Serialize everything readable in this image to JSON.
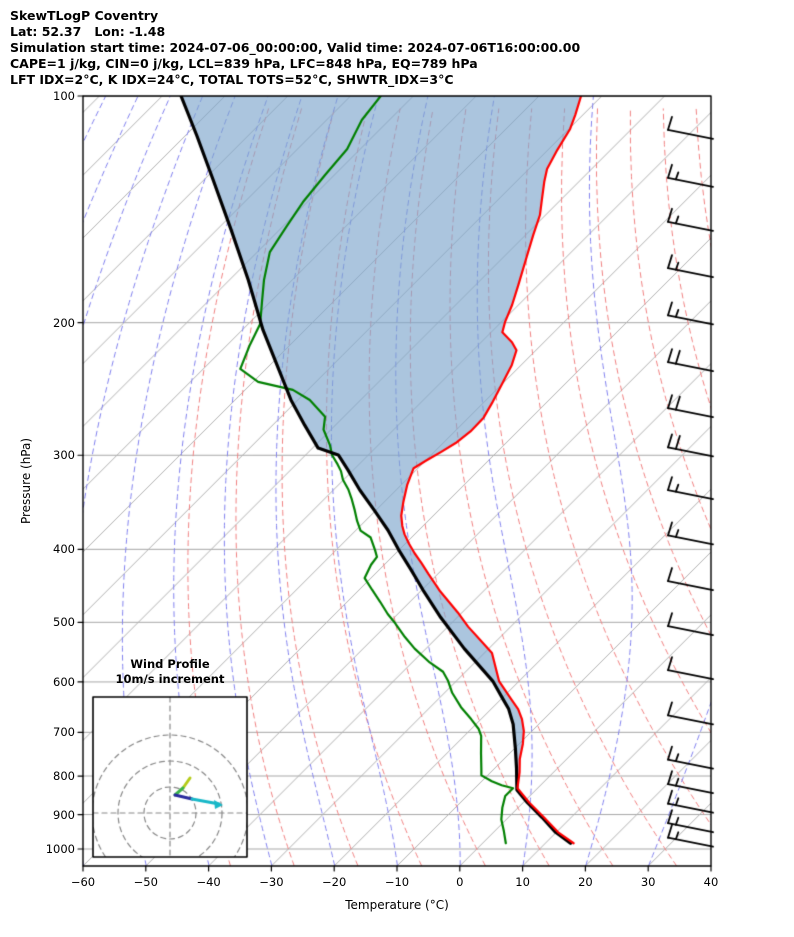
{
  "header": {
    "line1": "SkewTLogP Coventry",
    "line2": "Lat: 52.37   Lon: -1.48",
    "line3": "Simulation start time: 2024-07-06_00:00:00, Valid time: 2024-07-06T16:00:00.00",
    "line4": "CAPE=1 j/kg, CIN=0 j/kg, LCL=839 hPa, LFC=848 hPa, EQ=789 hPa",
    "line5": "LFT IDX=2°C, K IDX=24°C, TOTAL TOTS=52°C, SHWTR_IDX=3°C"
  },
  "inset": {
    "title1": "Wind Profile",
    "title2": "10m/s increment"
  },
  "chart_data": {
    "type": "skewt_logp",
    "title": "SkewTLogP Coventry",
    "location": {
      "lat": 52.37,
      "lon": -1.48
    },
    "simulation_start_time": "2024-07-06_00:00:00",
    "valid_time": "2024-07-06T16:00:00.00",
    "indices": {
      "CAPE_j_kg": 1,
      "CIN_j_kg": 0,
      "LCL_hPa": 839,
      "LFC_hPa": 848,
      "EQ_hPa": 789,
      "LFT_IDX_C": 2,
      "K_IDX_C": 24,
      "TOTAL_TOTS_C": 52,
      "SHWTR_IDX_C": 3
    },
    "xlabel": "Temperature (°C)",
    "ylabel": "Pressure (hPa)",
    "x_axis": {
      "min": -60,
      "max": 40,
      "tick_step": 10,
      "tick_labels": [
        "−60",
        "−50",
        "−40",
        "−30",
        "−20",
        "−10",
        "0",
        "10",
        "20",
        "30",
        "40"
      ]
    },
    "y_axis": {
      "scale": "log",
      "top_hPa": 100,
      "bottom_hPa": 1052,
      "ticks": [
        100,
        200,
        300,
        400,
        500,
        600,
        700,
        800,
        900,
        1000
      ]
    },
    "skew_deg_note": "isotherms skewed 45 deg up-right",
    "temperature_profile_pT": [
      [
        100,
        -103.3
      ],
      [
        106,
        -101.2
      ],
      [
        110.6,
        -99.8
      ],
      [
        117.9,
        -98.5
      ],
      [
        125,
        -97.1
      ],
      [
        130,
        -95.5
      ],
      [
        137.4,
        -93.0
      ],
      [
        143.9,
        -90.9
      ],
      [
        152.9,
        -88.8
      ],
      [
        165.1,
        -86.0
      ],
      [
        178.2,
        -83.2
      ],
      [
        189.5,
        -81.0
      ],
      [
        199.7,
        -79.4
      ],
      [
        206,
        -78.2
      ],
      [
        212.3,
        -75.1
      ],
      [
        217.6,
        -73.1
      ],
      [
        227.6,
        -71.5
      ],
      [
        239.7,
        -70.2
      ],
      [
        255.6,
        -68.6
      ],
      [
        267.4,
        -67.6
      ],
      [
        278.9,
        -67.5
      ],
      [
        289.0,
        -68.0
      ],
      [
        296.9,
        -68.9
      ],
      [
        304.9,
        -69.9
      ],
      [
        312.1,
        -70.7
      ],
      [
        328.1,
        -69.1
      ],
      [
        345.7,
        -67.0
      ],
      [
        360.9,
        -65.1
      ],
      [
        372.4,
        -63.3
      ],
      [
        382.1,
        -61.6
      ],
      [
        393.2,
        -59.4
      ],
      [
        404.8,
        -57.0
      ],
      [
        416.8,
        -54.4
      ],
      [
        431.7,
        -51.4
      ],
      [
        455.1,
        -46.8
      ],
      [
        485.1,
        -40.7
      ],
      [
        506.6,
        -36.8
      ],
      [
        525.9,
        -33.1
      ],
      [
        549.1,
        -28.8
      ],
      [
        598.4,
        -23.2
      ],
      [
        632.3,
        -18.4
      ],
      [
        651.9,
        -15.7
      ],
      [
        672.1,
        -13.5
      ],
      [
        697.1,
        -11.3
      ],
      [
        725.2,
        -9.4
      ],
      [
        759.2,
        -7.5
      ],
      [
        791.0,
        -5.4
      ],
      [
        830.5,
        -3.2
      ],
      [
        868.1,
        1.0
      ],
      [
        908.3,
        5.7
      ],
      [
        950.3,
        10.3
      ],
      [
        982.5,
        14.5
      ]
    ],
    "dewpoint_profile_pT": [
      [
        100,
        -135.2
      ],
      [
        107.6,
        -134.4
      ],
      [
        117.6,
        -132.1
      ],
      [
        127.3,
        -131.5
      ],
      [
        138.3,
        -130.7
      ],
      [
        149.3,
        -129.4
      ],
      [
        161.2,
        -128.0
      ],
      [
        175.5,
        -124.5
      ],
      [
        186.6,
        -121.6
      ],
      [
        200.8,
        -118.1
      ],
      [
        214.1,
        -116.4
      ],
      [
        230.4,
        -114.1
      ],
      [
        239.7,
        -109.2
      ],
      [
        245.6,
        -102.4
      ],
      [
        253.3,
        -98.1
      ],
      [
        266.6,
        -93.0
      ],
      [
        277.3,
        -91.2
      ],
      [
        290.8,
        -87.7
      ],
      [
        299.7,
        -85.8
      ],
      [
        308.5,
        -83.4
      ],
      [
        314.9,
        -81.8
      ],
      [
        323.4,
        -80.1
      ],
      [
        333.1,
        -77.7
      ],
      [
        342.2,
        -75.8
      ],
      [
        354.8,
        -73.4
      ],
      [
        366.7,
        -71.3
      ],
      [
        377.8,
        -69.2
      ],
      [
        385.8,
        -66.5
      ],
      [
        400.9,
        -63.8
      ],
      [
        409.4,
        -62.4
      ],
      [
        419.3,
        -62.1
      ],
      [
        436.7,
        -61.0
      ],
      [
        452.9,
        -57.9
      ],
      [
        469.9,
        -54.7
      ],
      [
        487.5,
        -51.6
      ],
      [
        501.1,
        -49.0
      ],
      [
        523.0,
        -45.2
      ],
      [
        541.9,
        -41.8
      ],
      [
        565.3,
        -37.2
      ],
      [
        581.6,
        -33.6
      ],
      [
        598.4,
        -31.3
      ],
      [
        620.2,
        -28.8
      ],
      [
        648.1,
        -25.1
      ],
      [
        672.1,
        -21.6
      ],
      [
        692.9,
        -18.8
      ],
      [
        707.8,
        -17.3
      ],
      [
        747.2,
        -14.5
      ],
      [
        781.7,
        -12.1
      ],
      [
        798.3,
        -11.0
      ],
      [
        812.9,
        -8.4
      ],
      [
        822.8,
        -6.2
      ],
      [
        830.5,
        -3.9
      ],
      [
        850.6,
        -3.9
      ],
      [
        881.6,
        -2.5
      ],
      [
        913.6,
        -0.8
      ],
      [
        947.4,
        1.5
      ],
      [
        982.5,
        3.7
      ]
    ],
    "parcel_profile_pT": [
      [
        100,
        -167.0
      ],
      [
        113.0,
        -158.1
      ],
      [
        129.3,
        -148.5
      ],
      [
        150.6,
        -137.7
      ],
      [
        175.5,
        -127.0
      ],
      [
        204.5,
        -116.7
      ],
      [
        227.6,
        -108.9
      ],
      [
        253.3,
        -101.1
      ],
      [
        273.6,
        -94.9
      ],
      [
        293.5,
        -89.1
      ],
      [
        299.7,
        -84.8
      ],
      [
        313.7,
        -80.9
      ],
      [
        333.6,
        -75.8
      ],
      [
        354.8,
        -70.3
      ],
      [
        377.3,
        -64.9
      ],
      [
        400.0,
        -60.2
      ],
      [
        426.0,
        -54.9
      ],
      [
        453.0,
        -49.8
      ],
      [
        492.7,
        -42.6
      ],
      [
        541.9,
        -33.9
      ],
      [
        598.4,
        -24.2
      ],
      [
        632.3,
        -19.7
      ],
      [
        651.9,
        -17.2
      ],
      [
        682.6,
        -14.1
      ],
      [
        736.2,
        -9.8
      ],
      [
        781.7,
        -6.5
      ],
      [
        835.0,
        -3.0
      ],
      [
        868.1,
        0.7
      ],
      [
        908.3,
        5.4
      ],
      [
        950.3,
        9.9
      ],
      [
        982.5,
        14.0
      ]
    ],
    "cape_shading": "between parcel and temperature profiles, light steel blue",
    "wind_barbs": {
      "units": "m/s, full barb = 10 m/s (10m/s increment)",
      "barbs_p_speed": [
        [
          114,
          10
        ],
        [
          132,
          15
        ],
        [
          151,
          15
        ],
        [
          174,
          15
        ],
        [
          201,
          15
        ],
        [
          232,
          20
        ],
        [
          267,
          20
        ],
        [
          301,
          20
        ],
        [
          343,
          15
        ],
        [
          394,
          15
        ],
        [
          453,
          10
        ],
        [
          520,
          10
        ],
        [
          595,
          10
        ],
        [
          683,
          10
        ],
        [
          782,
          15
        ],
        [
          843,
          15
        ],
        [
          895,
          15
        ],
        [
          950,
          15
        ],
        [
          993,
          15
        ]
      ]
    },
    "grid": {
      "isotherms": {
        "from": -180,
        "to": 40,
        "step": 10,
        "color": "#b0b0b0",
        "style": "solid"
      },
      "pressure_lines": {
        "levels": [
          100,
          200,
          300,
          400,
          500,
          600,
          700,
          800,
          900,
          1000
        ],
        "color": "#a6a6a6"
      },
      "dry_adiabats": {
        "theta_from": -40,
        "theta_to": 200,
        "step": 10,
        "color": "#f08080",
        "style": "dashed"
      },
      "moist_adiabats": {
        "t0_from": -110,
        "t0_to": 40,
        "step": 10,
        "color": "#8080ee",
        "style": "dashed"
      }
    },
    "colors": {
      "temperature": "#ff0000",
      "dewpoint": "#008000",
      "parcel": "#000000",
      "shade": "rgba(126,166,205,0.65)"
    },
    "hodograph_inset": {
      "rings_spacing_note": "3 dashed range rings, 10 m/s increment",
      "segments": [
        {
          "color": "#b5cc1a",
          "pts": [
            [
              190,
              778
            ],
            [
              183,
              788
            ]
          ]
        },
        {
          "color": "#3cb44b",
          "pts": [
            [
              183,
              788
            ],
            [
              175,
              795
            ]
          ]
        },
        {
          "color": "#2a2a9e",
          "pts": [
            [
              175,
              795
            ],
            [
              192,
              799
            ]
          ]
        },
        {
          "color": "#18b8c8",
          "pts": [
            [
              192,
              799
            ],
            [
              219,
              804
            ]
          ]
        }
      ]
    }
  }
}
